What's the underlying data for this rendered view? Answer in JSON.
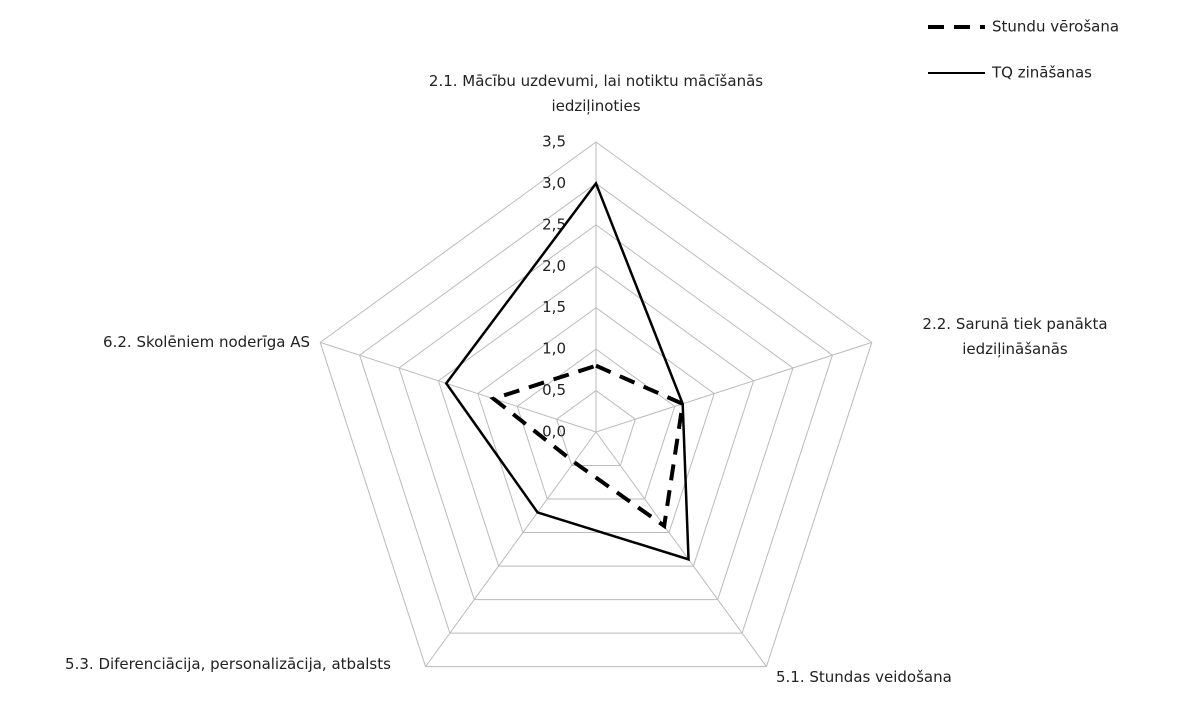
{
  "chart_data": {
    "type": "radar",
    "categories": [
      "2.1. Mācību uzdevumi, lai notiktu mācīšanās iedziļinoties",
      "2.2. Sarunā tiek panākta iedziļināšanās",
      "5.1. Stundas veidošana",
      "5.3. Diferenciācija, personalizācija, atbalsts",
      "6.2. Skolēniem noderīga AS"
    ],
    "series": [
      {
        "name": "Stundu vērošana",
        "color": "#000000",
        "dashed": true,
        "values": [
          0.8,
          1.1,
          1.4,
          0.45,
          1.3
        ]
      },
      {
        "name": "TQ zināšanas",
        "color": "#000000",
        "dashed": false,
        "values": [
          3.0,
          1.1,
          1.9,
          1.2,
          1.9
        ]
      }
    ],
    "ylim": [
      0,
      3.5
    ],
    "yticks": [
      {
        "value": 0,
        "label": "0,0"
      },
      {
        "value": 0.5,
        "label": "0,5"
      },
      {
        "value": 1,
        "label": "1,0"
      },
      {
        "value": 1.5,
        "label": "1,5"
      },
      {
        "value": 2,
        "label": "2,0"
      },
      {
        "value": 2.5,
        "label": "2,5"
      },
      {
        "value": 3,
        "label": "3,0"
      },
      {
        "value": 3.5,
        "label": "3,5"
      }
    ],
    "grid": true,
    "legend": "top-right"
  }
}
